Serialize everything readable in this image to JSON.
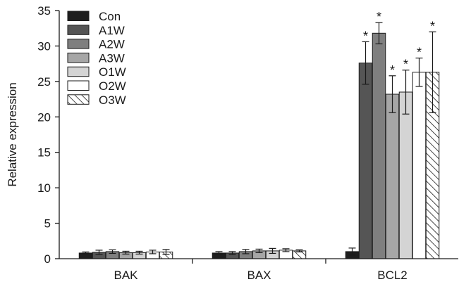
{
  "chart_data": {
    "type": "bar",
    "categories": [
      "BAK",
      "BAX",
      "BCL2"
    ],
    "ylabel": "Relative expression",
    "ylim": [
      0,
      35
    ],
    "yticks": [
      0,
      5,
      10,
      15,
      20,
      25,
      30,
      35
    ],
    "grid": false,
    "legend_position": "top-left",
    "series": [
      {
        "name": "Con",
        "fill": "#1e1e1e",
        "pattern": "solid",
        "values": [
          0.8,
          0.8,
          1.0
        ],
        "errors": [
          0.15,
          0.2,
          0.5
        ],
        "significant": [
          false,
          false,
          false
        ]
      },
      {
        "name": "A1W",
        "fill": "#555555",
        "pattern": "solid",
        "values": [
          0.9,
          0.8,
          27.6
        ],
        "errors": [
          0.3,
          0.2,
          3.0
        ],
        "significant": [
          false,
          false,
          true
        ]
      },
      {
        "name": "A2W",
        "fill": "#7f7f7f",
        "pattern": "solid",
        "values": [
          1.0,
          1.0,
          31.8
        ],
        "errors": [
          0.25,
          0.3,
          1.5
        ],
        "significant": [
          false,
          false,
          true
        ]
      },
      {
        "name": "A3W",
        "fill": "#a6a6a6",
        "pattern": "solid",
        "values": [
          0.85,
          1.1,
          23.2
        ],
        "errors": [
          0.2,
          0.25,
          2.6
        ],
        "significant": [
          false,
          false,
          true
        ]
      },
      {
        "name": "O1W",
        "fill": "#d4d4d4",
        "pattern": "solid",
        "values": [
          0.85,
          1.1,
          23.5
        ],
        "errors": [
          0.2,
          0.35,
          3.1
        ],
        "significant": [
          false,
          false,
          true
        ]
      },
      {
        "name": "O2W",
        "fill": "#ffffff",
        "pattern": "solid",
        "values": [
          0.95,
          1.2,
          26.3
        ],
        "errors": [
          0.25,
          0.2,
          2.0
        ],
        "significant": [
          false,
          false,
          true
        ]
      },
      {
        "name": "O3W",
        "fill": "#ffffff",
        "pattern": "hatch",
        "values": [
          0.95,
          1.1,
          26.3
        ],
        "errors": [
          0.35,
          0.15,
          5.7
        ],
        "significant": [
          false,
          false,
          true
        ]
      }
    ],
    "significance_marker": "*"
  }
}
